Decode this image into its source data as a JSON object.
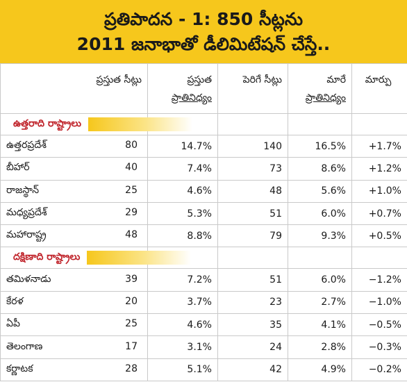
{
  "title": {
    "line1": "ప్రతిపాదన - 1: 850 సీట్లను",
    "line2": "2011 జనాభాతో డీలిమిటేషన్ చేస్తే.."
  },
  "headers": {
    "current_seats": "ప్రస్తుత సీట్లు",
    "current_share_line1": "ప్రస్తుత",
    "current_share_line2": "ప్రాతినిధ్యం",
    "increased_seats": "పెరిగే సీట్లు",
    "changed_share_line1": "మారే",
    "changed_share_line2": "ప్రాతినిధ్యం",
    "change": "మార్పు"
  },
  "sections": [
    {
      "label": "ఉత్తరాది రాష్ట్రాలు",
      "rows": [
        {
          "state": "ఉత్తరప్రదేశ్",
          "current_seats": "80",
          "current_share": "14.7%",
          "new_seats": "140",
          "new_share": "16.5%",
          "change": "+1.7%"
        },
        {
          "state": "బీహార్",
          "current_seats": "40",
          "current_share": "7.4%",
          "new_seats": "73",
          "new_share": "8.6%",
          "change": "+1.2%"
        },
        {
          "state": "రాజస్థాన్",
          "current_seats": "25",
          "current_share": "4.6%",
          "new_seats": "48",
          "new_share": "5.6%",
          "change": "+1.0%"
        },
        {
          "state": "మధ్యప్రదేశ్",
          "current_seats": "29",
          "current_share": "5.3%",
          "new_seats": "51",
          "new_share": "6.0%",
          "change": "+0.7%"
        },
        {
          "state": "మహారాష్ట్ర",
          "current_seats": "48",
          "current_share": "8.8%",
          "new_seats": "79",
          "new_share": "9.3%",
          "change": "+0.5%"
        }
      ]
    },
    {
      "label": "దక్షిణాది రాష్ట్రాలు",
      "rows": [
        {
          "state": "తమిళనాడు",
          "current_seats": "39",
          "current_share": "7.2%",
          "new_seats": "51",
          "new_share": "6.0%",
          "change": "−1.2%"
        },
        {
          "state": "కేరళ",
          "current_seats": "20",
          "current_share": "3.7%",
          "new_seats": "23",
          "new_share": "2.7%",
          "change": "−1.0%"
        },
        {
          "state": "ఏపీ",
          "current_seats": "25",
          "current_share": "4.6%",
          "new_seats": "35",
          "new_share": "4.1%",
          "change": "−0.5%"
        },
        {
          "state": "తెలంగాణ",
          "current_seats": "17",
          "current_share": "3.1%",
          "new_seats": "24",
          "new_share": "2.8%",
          "change": "−0.3%"
        },
        {
          "state": "కర్ణాటక",
          "current_seats": "28",
          "current_share": "5.1%",
          "new_seats": "42",
          "new_share": "4.9%",
          "change": "−0.2%"
        }
      ]
    }
  ],
  "colors": {
    "banner": "#f6c71c",
    "section_label": "#c0242b",
    "grid": "#c9c9c9"
  }
}
